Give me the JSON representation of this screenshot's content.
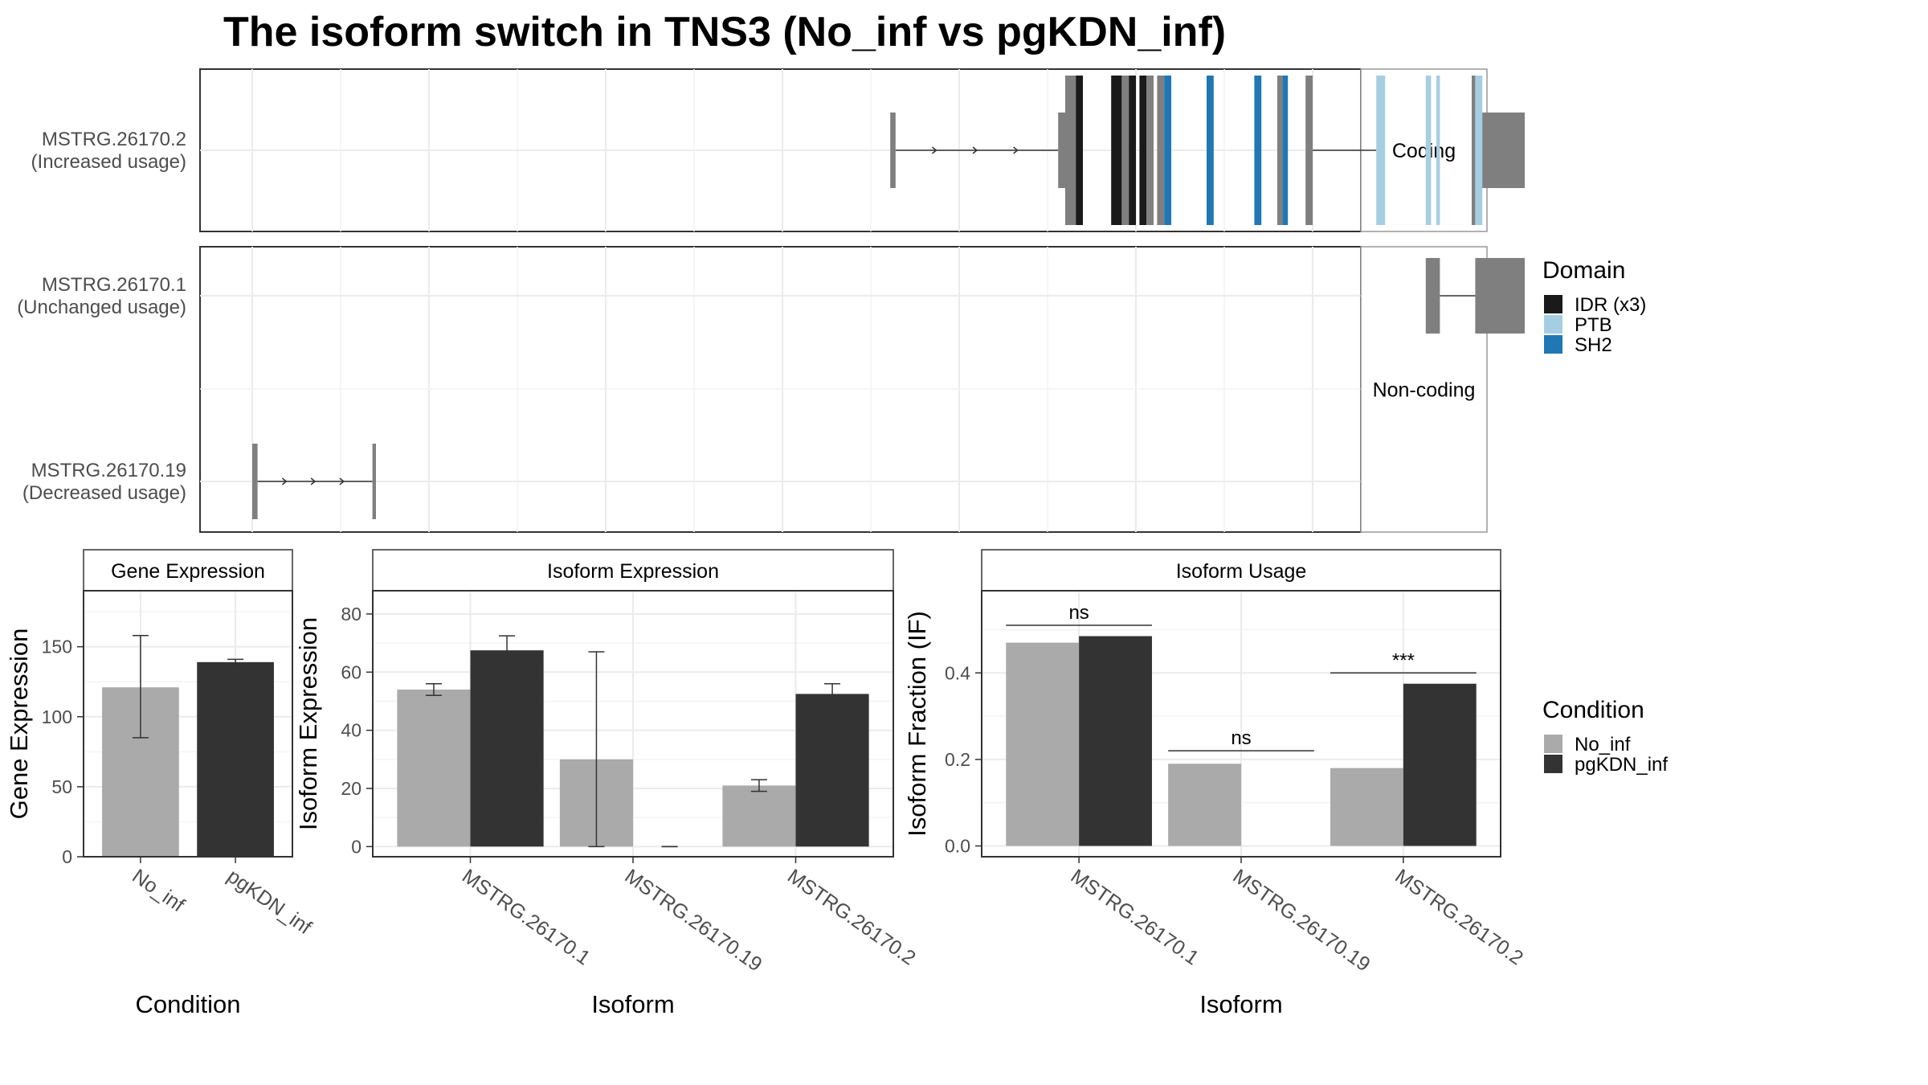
{
  "title": "The isoform switch in TNS3 (No_inf vs pgKDN_inf)",
  "colors": {
    "idr": "#1a1a1a",
    "ptb": "#a6cee3",
    "sh2": "#1f78b4",
    "exon": "#7f7f7f",
    "no_inf": "#aaaaaa",
    "pgkdn_inf": "#333333",
    "panel_border": "#333333",
    "strip_border": "#999999",
    "grid": "#ebebeb"
  },
  "structure": {
    "panels": [
      {
        "strip": "Coding",
        "isoforms": [
          {
            "label_line1": "MSTRG.26170.2",
            "label_line2": "(Increased usage)",
            "segments": [
              {
                "start": 36.1,
                "end": 36.4,
                "type": "exon",
                "height": "small"
              },
              {
                "start": 45.6,
                "end": 46.0,
                "type": "exon",
                "height": "small"
              },
              {
                "start": 46.0,
                "end": 46.6,
                "type": "exon",
                "height": "tall"
              },
              {
                "start": 46.6,
                "end": 47.0,
                "type": "idr",
                "height": "tall"
              },
              {
                "start": 48.6,
                "end": 49.2,
                "type": "idr",
                "height": "tall"
              },
              {
                "start": 49.2,
                "end": 49.6,
                "type": "exon",
                "height": "tall"
              },
              {
                "start": 49.6,
                "end": 50.0,
                "type": "idr",
                "height": "tall"
              },
              {
                "start": 50.2,
                "end": 50.6,
                "type": "idr",
                "height": "tall"
              },
              {
                "start": 50.6,
                "end": 51.0,
                "type": "exon",
                "height": "tall"
              },
              {
                "start": 51.2,
                "end": 51.6,
                "type": "exon",
                "height": "tall"
              },
              {
                "start": 51.6,
                "end": 52.0,
                "type": "sh2",
                "height": "tall"
              },
              {
                "start": 54.0,
                "end": 54.4,
                "type": "sh2",
                "height": "tall"
              },
              {
                "start": 56.7,
                "end": 57.1,
                "type": "sh2",
                "height": "tall"
              },
              {
                "start": 58.0,
                "end": 58.3,
                "type": "exon",
                "height": "tall"
              },
              {
                "start": 58.3,
                "end": 58.6,
                "type": "sh2",
                "height": "tall"
              },
              {
                "start": 59.6,
                "end": 60.0,
                "type": "exon",
                "height": "tall"
              },
              {
                "start": 63.6,
                "end": 64.1,
                "type": "ptb",
                "height": "tall"
              },
              {
                "start": 66.4,
                "end": 66.7,
                "type": "ptb",
                "height": "tall"
              },
              {
                "start": 67.0,
                "end": 67.2,
                "type": "ptb",
                "height": "tall"
              },
              {
                "start": 69.0,
                "end": 69.2,
                "type": "exon",
                "height": "tall"
              },
              {
                "start": 69.2,
                "end": 69.6,
                "type": "ptb",
                "height": "tall"
              },
              {
                "start": 69.6,
                "end": 72.0,
                "type": "exon",
                "height": "small"
              }
            ],
            "introns": [
              [
                36.4,
                45.6
              ],
              [
                60.0,
                63.6
              ]
            ]
          }
        ]
      },
      {
        "strip": "Non-coding",
        "isoforms": [
          {
            "label_line1": "MSTRG.26170.1",
            "label_line2": "(Unchanged usage)",
            "segments": [
              {
                "start": 66.4,
                "end": 67.2,
                "type": "exon",
                "height": "small"
              },
              {
                "start": 69.2,
                "end": 72.0,
                "type": "exon",
                "height": "small"
              }
            ],
            "introns": [
              [
                67.2,
                69.2
              ]
            ]
          },
          {
            "label_line1": "MSTRG.26170.19",
            "label_line2": "(Decreased usage)",
            "segments": [
              {
                "start": 0.0,
                "end": 0.3,
                "type": "exon",
                "height": "small"
              },
              {
                "start": 6.8,
                "end": 7.0,
                "type": "exon",
                "height": "small"
              }
            ],
            "introns": [
              [
                0.3,
                6.8
              ]
            ]
          }
        ]
      }
    ]
  },
  "legends": {
    "domain": {
      "title": "Domain",
      "items": [
        {
          "label": "IDR (x3)",
          "color": "#1a1a1a"
        },
        {
          "label": "PTB",
          "color": "#a6cee3"
        },
        {
          "label": "SH2",
          "color": "#1f78b4"
        }
      ]
    },
    "condition": {
      "title": "Condition",
      "items": [
        {
          "label": "No_inf",
          "color": "#aaaaaa"
        },
        {
          "label": "pgKDN_inf",
          "color": "#333333"
        }
      ]
    }
  },
  "chart_data": [
    {
      "type": "bar",
      "title": "Gene Expression",
      "xlabel": "Condition",
      "ylabel": "Gene Expression",
      "ylim": [
        0,
        190
      ],
      "yticks": [
        0,
        50,
        100,
        150
      ],
      "categories": [
        "No_inf",
        "pgKDN_inf"
      ],
      "values": [
        121,
        139
      ],
      "error_low": [
        85,
        137
      ],
      "error_high": [
        158,
        141
      ],
      "bar_colors": [
        "#aaaaaa",
        "#333333"
      ]
    },
    {
      "type": "bar",
      "title": "Isoform Expression",
      "xlabel": "Isoform",
      "ylabel": "Isoform Expression",
      "ylim": [
        -3.5,
        88
      ],
      "yticks": [
        0,
        20,
        40,
        60,
        80
      ],
      "categories": [
        "MSTRG.26170.1",
        "MSTRG.26170.19",
        "MSTRG.26170.2"
      ],
      "series": [
        {
          "name": "No_inf",
          "values": [
            54,
            30,
            21
          ],
          "error_low": [
            52,
            0,
            19
          ],
          "error_high": [
            56,
            67,
            23
          ]
        },
        {
          "name": "pgKDN_inf",
          "values": [
            67.5,
            0,
            52.5
          ],
          "error_low": [
            62.5,
            0,
            49
          ],
          "error_high": [
            72.5,
            0,
            56
          ]
        }
      ]
    },
    {
      "type": "bar",
      "title": "Isoform Usage",
      "xlabel": "Isoform",
      "ylabel": "Isoform Fraction (IF)",
      "ylim": [
        -0.025,
        0.59
      ],
      "yticks": [
        0.0,
        0.2,
        0.4
      ],
      "ytick_labels": [
        "0.0",
        "0.2",
        "0.4"
      ],
      "categories": [
        "MSTRG.26170.1",
        "MSTRG.26170.19",
        "MSTRG.26170.2"
      ],
      "series": [
        {
          "name": "No_inf",
          "values": [
            0.47,
            0.19,
            0.18
          ]
        },
        {
          "name": "pgKDN_inf",
          "values": [
            0.485,
            0,
            0.375
          ]
        }
      ],
      "significance": [
        {
          "category": 0,
          "label": "ns",
          "y": 0.51
        },
        {
          "category": 1,
          "label": "ns",
          "y": 0.22
        },
        {
          "category": 2,
          "label": "***",
          "y": 0.4
        }
      ]
    }
  ]
}
